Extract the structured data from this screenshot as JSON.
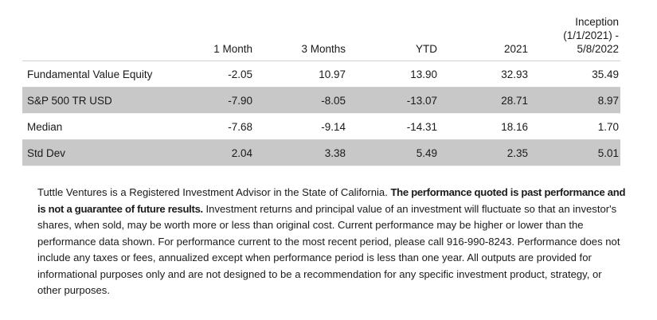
{
  "table": {
    "columns": [
      "",
      "1 Month",
      "3 Months",
      "YTD",
      "2021",
      "Inception (1/1/2021) - 5/8/2022"
    ],
    "inception_header_lines": [
      "Inception",
      "(1/1/2021) -",
      "5/8/2022"
    ],
    "rows": [
      {
        "name": "Fundamental Value Equity",
        "values": [
          "-2.05",
          "10.97",
          "13.90",
          "32.93",
          "35.49"
        ],
        "shaded": false
      },
      {
        "name": "S&P 500 TR USD",
        "values": [
          "-7.90",
          "-8.05",
          "-13.07",
          "28.71",
          "8.97"
        ],
        "shaded": true
      },
      {
        "name": "Median",
        "values": [
          "-7.68",
          "-9.14",
          "-14.31",
          "18.16",
          "1.70"
        ],
        "shaded": false
      },
      {
        "name": "Std Dev",
        "values": [
          "2.04",
          "3.38",
          "5.49",
          "2.35",
          "5.01"
        ],
        "shaded": true
      }
    ]
  },
  "disclaimer": {
    "intro": "Tuttle Ventures is a Registered Investment Advisor in the State of California. ",
    "bold": "The performance quoted is past performance and is not a guarantee of future results.",
    "rest": " Investment returns and principal value of an investment will fluctuate so that an  investor's shares, when sold, may be worth more or less than original cost.  Current performance may be higher or lower than the performance data shown.  For performance current to the most recent period, please call  916-990-8243. Performance does not include any taxes or fees, annualized except when performance period is less than one year. All outputs are provided for informational purposes  only and are not designed to be a recommendation for any specific investment  product, strategy, or other purposes."
  },
  "colors": {
    "shaded_row": "#c8c8c8",
    "text": "#1a1a1a"
  }
}
